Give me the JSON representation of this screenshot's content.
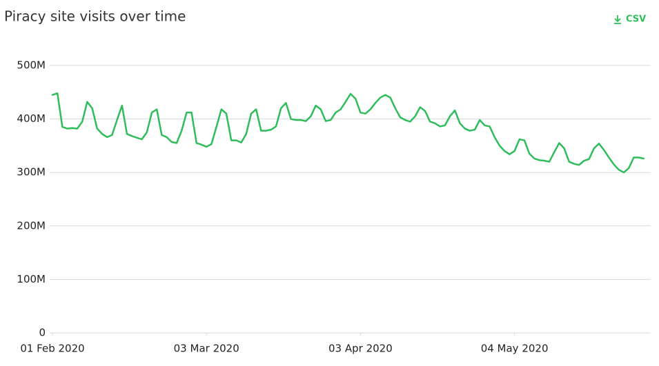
{
  "toolbar": {
    "download": "CSV"
  },
  "chart_data": {
    "type": "line",
    "title": "Piracy site visits over time",
    "x": [
      "2020-02-01",
      "2020-02-02",
      "2020-02-03",
      "2020-02-04",
      "2020-02-05",
      "2020-02-06",
      "2020-02-07",
      "2020-02-08",
      "2020-02-09",
      "2020-02-10",
      "2020-02-11",
      "2020-02-12",
      "2020-02-13",
      "2020-02-14",
      "2020-02-15",
      "2020-02-16",
      "2020-02-17",
      "2020-02-18",
      "2020-02-19",
      "2020-02-20",
      "2020-02-21",
      "2020-02-22",
      "2020-02-23",
      "2020-02-24",
      "2020-02-25",
      "2020-02-26",
      "2020-02-27",
      "2020-02-28",
      "2020-02-29",
      "2020-03-01",
      "2020-03-02",
      "2020-03-03",
      "2020-03-04",
      "2020-03-05",
      "2020-03-06",
      "2020-03-07",
      "2020-03-08",
      "2020-03-09",
      "2020-03-10",
      "2020-03-11",
      "2020-03-12",
      "2020-03-13",
      "2020-03-14",
      "2020-03-15",
      "2020-03-16",
      "2020-03-17",
      "2020-03-18",
      "2020-03-19",
      "2020-03-20",
      "2020-03-21",
      "2020-03-22",
      "2020-03-23",
      "2020-03-24",
      "2020-03-25",
      "2020-03-26",
      "2020-03-27",
      "2020-03-28",
      "2020-03-29",
      "2020-03-30",
      "2020-03-31",
      "2020-04-01",
      "2020-04-02",
      "2020-04-03",
      "2020-04-04",
      "2020-04-05",
      "2020-04-06",
      "2020-04-07",
      "2020-04-08",
      "2020-04-09",
      "2020-04-10",
      "2020-04-11",
      "2020-04-12",
      "2020-04-13",
      "2020-04-14",
      "2020-04-15",
      "2020-04-16",
      "2020-04-17",
      "2020-04-18",
      "2020-04-19",
      "2020-04-20",
      "2020-04-21",
      "2020-04-22",
      "2020-04-23",
      "2020-04-24",
      "2020-04-25",
      "2020-04-26",
      "2020-04-27",
      "2020-04-28",
      "2020-04-29",
      "2020-04-30",
      "2020-05-01",
      "2020-05-02",
      "2020-05-03",
      "2020-05-04",
      "2020-05-05",
      "2020-05-06",
      "2020-05-07",
      "2020-05-08",
      "2020-05-09",
      "2020-05-10",
      "2020-05-11",
      "2020-05-12",
      "2020-05-13",
      "2020-05-14",
      "2020-05-15",
      "2020-05-16",
      "2020-05-17",
      "2020-05-18",
      "2020-05-19",
      "2020-05-20",
      "2020-05-21",
      "2020-05-22",
      "2020-05-23",
      "2020-05-24",
      "2020-05-25",
      "2020-05-26",
      "2020-05-27",
      "2020-05-28",
      "2020-05-29",
      "2020-05-30"
    ],
    "series": [
      {
        "color": "#2dbd5a",
        "values": [
          445000000,
          448000000,
          385000000,
          382000000,
          383000000,
          382000000,
          395000000,
          432000000,
          420000000,
          382000000,
          372000000,
          366000000,
          370000000,
          398000000,
          425000000,
          372000000,
          368000000,
          365000000,
          362000000,
          375000000,
          412000000,
          418000000,
          370000000,
          366000000,
          357000000,
          355000000,
          378000000,
          412000000,
          412000000,
          355000000,
          352000000,
          348000000,
          353000000,
          385000000,
          418000000,
          410000000,
          360000000,
          360000000,
          356000000,
          372000000,
          410000000,
          418000000,
          378000000,
          378000000,
          380000000,
          386000000,
          420000000,
          430000000,
          400000000,
          398000000,
          398000000,
          396000000,
          405000000,
          425000000,
          418000000,
          396000000,
          398000000,
          412000000,
          418000000,
          432000000,
          447000000,
          438000000,
          412000000,
          410000000,
          418000000,
          430000000,
          440000000,
          445000000,
          440000000,
          420000000,
          403000000,
          398000000,
          395000000,
          405000000,
          422000000,
          415000000,
          395000000,
          392000000,
          386000000,
          388000000,
          405000000,
          416000000,
          392000000,
          382000000,
          378000000,
          380000000,
          398000000,
          388000000,
          386000000,
          366000000,
          350000000,
          340000000,
          334000000,
          340000000,
          362000000,
          360000000,
          335000000,
          326000000,
          323000000,
          322000000,
          320000000,
          338000000,
          355000000,
          345000000,
          320000000,
          316000000,
          314000000,
          322000000,
          325000000,
          345000000,
          354000000,
          342000000,
          328000000,
          315000000,
          305000000,
          300000000,
          308000000,
          328000000,
          328000000,
          326000000
        ]
      }
    ],
    "xlim": [
      "2020-02-01",
      "2020-05-31"
    ],
    "xticks": [
      {
        "value": "2020-02-01",
        "label": "01 Feb 2020"
      },
      {
        "value": "2020-03-03",
        "label": "03 Mar 2020"
      },
      {
        "value": "2020-04-03",
        "label": "03 Apr 2020"
      },
      {
        "value": "2020-05-04",
        "label": "04 May 2020"
      }
    ],
    "ylim": [
      0,
      500000000
    ],
    "yticks": [
      0,
      {
        "value": 100000000,
        "label": "100M"
      },
      {
        "value": 200000000,
        "label": "200M"
      },
      {
        "value": 300000000,
        "label": "300M"
      },
      {
        "value": 400000000,
        "label": "400M"
      },
      {
        "value": 500000000,
        "label": "500M"
      }
    ],
    "grid": true
  }
}
